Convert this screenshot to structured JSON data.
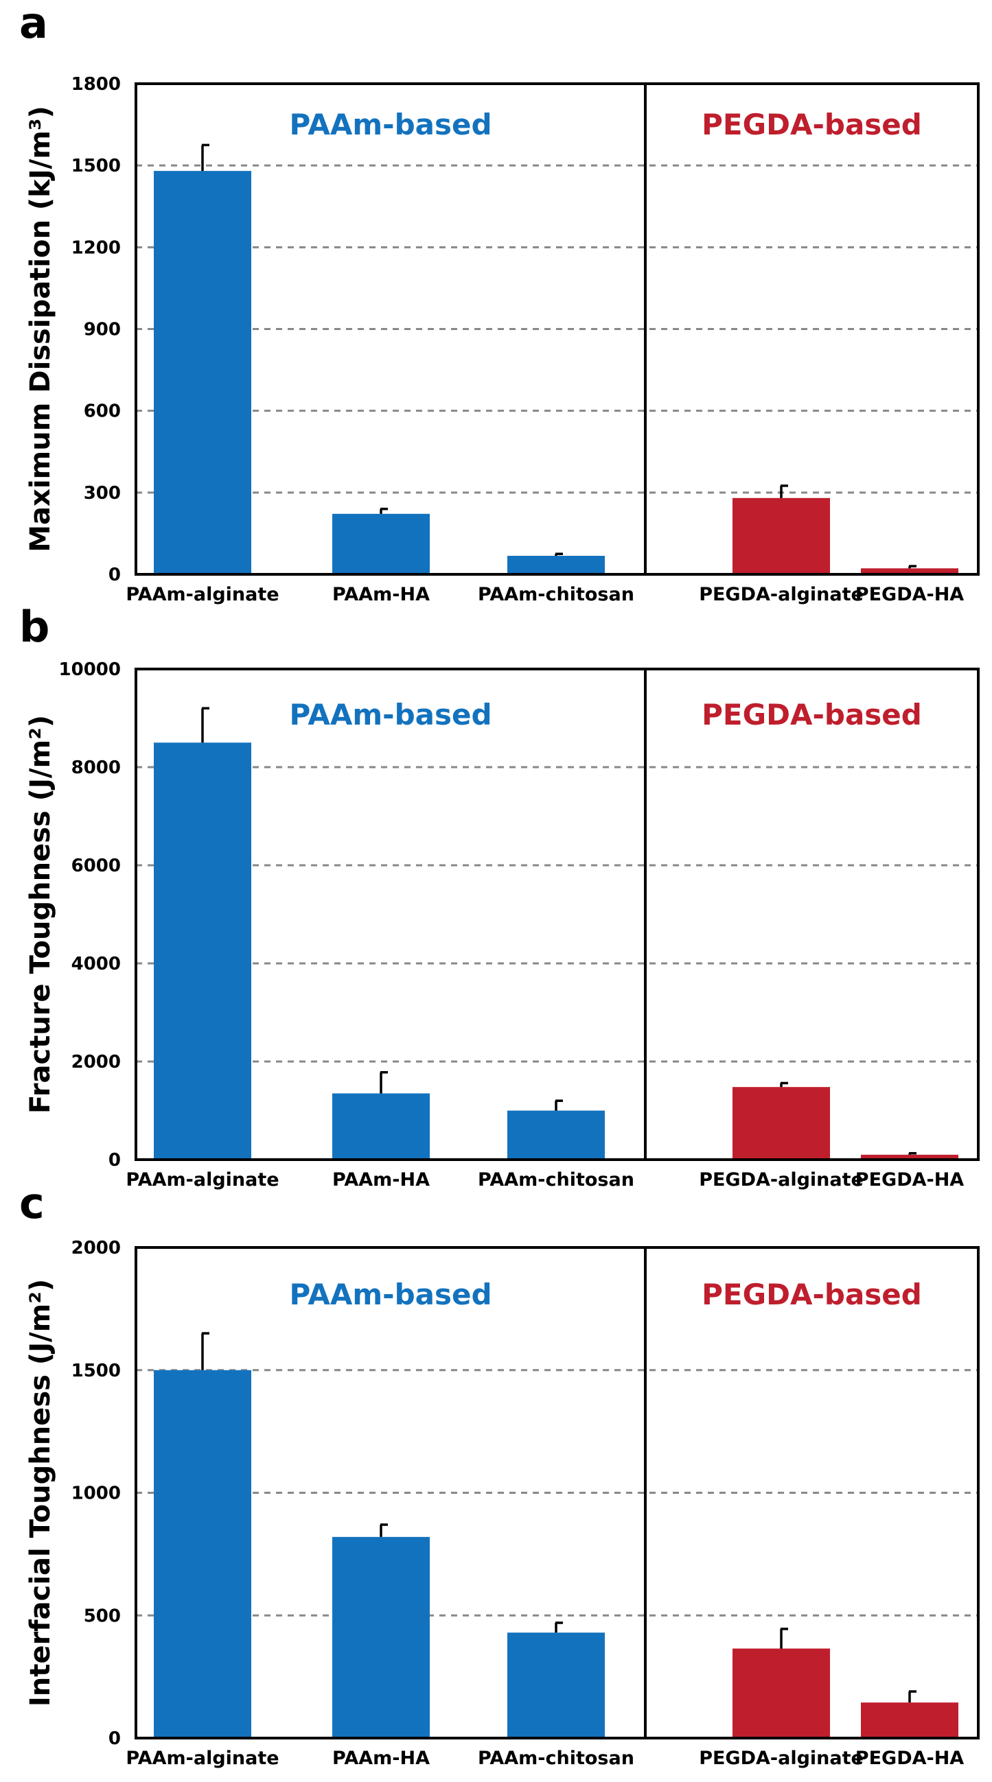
{
  "colors": {
    "paam": "#1372be",
    "pegda": "#bf1e2d",
    "grid": "#888888"
  },
  "chart_data": [
    {
      "type": "bar",
      "panel": "a",
      "ylabel": "Maximum Dissipation (kJ/m³)",
      "ylim": [
        0,
        1800
      ],
      "yticks": [
        0,
        300,
        600,
        900,
        1200,
        1500,
        1800
      ],
      "grid": true,
      "groups": [
        "PAAm-based",
        "PEGDA-based"
      ],
      "categories": [
        "PAAm-alginate",
        "PAAm-HA",
        "PAAm-chitosan",
        "PEGDA-alginate",
        "PEGDA-HA"
      ],
      "category_group": [
        0,
        0,
        0,
        1,
        1
      ],
      "values": [
        1480,
        222,
        68,
        280,
        22
      ],
      "errors": [
        95,
        18,
        7,
        45,
        8
      ]
    },
    {
      "type": "bar",
      "panel": "b",
      "ylabel": "Fracture Toughness (J/m²)",
      "ylim": [
        0,
        10000
      ],
      "yticks": [
        0,
        2000,
        4000,
        6000,
        8000,
        10000
      ],
      "grid": true,
      "groups": [
        "PAAm-based",
        "PEGDA-based"
      ],
      "categories": [
        "PAAm-alginate",
        "PAAm-HA",
        "PAAm-chitosan",
        "PEGDA-alginate",
        "PEGDA-HA"
      ],
      "category_group": [
        0,
        0,
        0,
        1,
        1
      ],
      "values": [
        8500,
        1350,
        1000,
        1480,
        100
      ],
      "errors": [
        700,
        430,
        200,
        80,
        30
      ]
    },
    {
      "type": "bar",
      "panel": "c",
      "ylabel": "Interfacial Toughness (J/m²)",
      "ylim": [
        0,
        2000
      ],
      "yticks": [
        0,
        500,
        1000,
        1500,
        2000
      ],
      "grid": true,
      "groups": [
        "PAAm-based",
        "PEGDA-based"
      ],
      "categories": [
        "PAAm-alginate",
        "PAAm-HA",
        "PAAm-chitosan",
        "PEGDA-alginate",
        "PEGDA-HA"
      ],
      "category_group": [
        0,
        0,
        0,
        1,
        1
      ],
      "values": [
        1500,
        820,
        430,
        365,
        145
      ],
      "errors": [
        150,
        50,
        40,
        80,
        45
      ]
    }
  ]
}
